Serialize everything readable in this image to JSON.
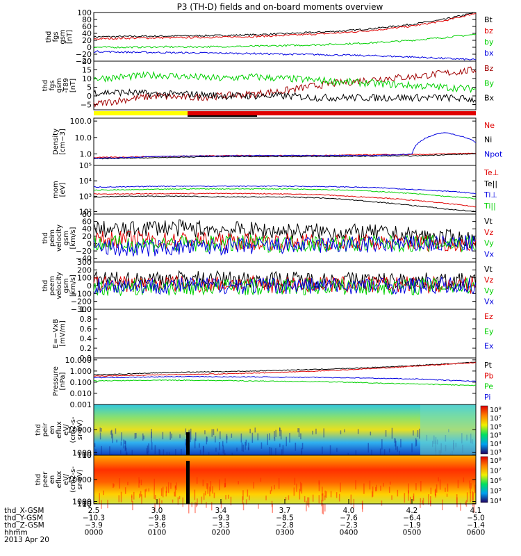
{
  "title": "P3 (TH-D) fields and on-board moments overview",
  "colors": {
    "black": "#000000",
    "red": "#e00000",
    "green": "#00d000",
    "blue": "#0000e0",
    "darkred": "#a00000",
    "yellow": "#ffff00"
  },
  "chart_data": [
    {
      "type": "line",
      "ylabel": [
        "thd",
        "fgs",
        "gsm",
        "[nT]"
      ],
      "ylim": [
        -40,
        100
      ],
      "yticks": [
        "100",
        "80",
        "60",
        "40",
        "20",
        "0",
        "−20",
        "−40"
      ],
      "ytick_values": [
        100,
        80,
        60,
        40,
        20,
        0,
        -20,
        -40
      ],
      "x": [
        0,
        30,
        60,
        90,
        120,
        150,
        180,
        210,
        240,
        270,
        300,
        330,
        360
      ],
      "series": [
        {
          "name": "Bt",
          "color": "black",
          "values": [
            30,
            31,
            32,
            33,
            34,
            36,
            39,
            43,
            48,
            56,
            66,
            80,
            100
          ]
        },
        {
          "name": "bz",
          "color": "red",
          "values": [
            24,
            26,
            27,
            28,
            29,
            31,
            34,
            38,
            43,
            51,
            61,
            76,
            98
          ]
        },
        {
          "name": "by",
          "color": "green",
          "values": [
            0,
            0,
            1,
            1,
            2,
            3,
            5,
            7,
            10,
            14,
            20,
            28,
            37
          ]
        },
        {
          "name": "bx",
          "color": "blue",
          "values": [
            -12,
            -14,
            -15,
            -16,
            -17,
            -18,
            -20,
            -21,
            -23,
            -25,
            -28,
            -32,
            -36
          ]
        }
      ]
    },
    {
      "type": "line",
      "ylabel": [
        "thd",
        "fgs",
        "gsm",
        "-T89",
        "[nT]"
      ],
      "ylim": [
        -8,
        20
      ],
      "yticks": [
        "20",
        "15",
        "10",
        "5",
        "0",
        "−5"
      ],
      "ytick_values": [
        20,
        15,
        10,
        5,
        0,
        -5
      ],
      "x": [
        0,
        30,
        60,
        90,
        120,
        150,
        180,
        210,
        240,
        270,
        300,
        330,
        360
      ],
      "series": [
        {
          "name": "Bz",
          "color": "darkred",
          "values": [
            -5,
            -2,
            0,
            -1,
            0,
            1,
            3,
            6,
            8,
            10,
            11,
            13,
            15
          ]
        },
        {
          "name": "By",
          "color": "green",
          "values": [
            10,
            11,
            12,
            11,
            10,
            11,
            10,
            9,
            8,
            7,
            6,
            5,
            4
          ]
        },
        {
          "name": "Bx",
          "color": "black",
          "values": [
            2,
            2,
            1,
            1,
            0,
            0,
            0,
            -1,
            -1,
            -1,
            -1,
            -1,
            -2
          ]
        }
      ]
    },
    {
      "type": "line",
      "log": true,
      "ylabel": [
        "Density",
        "[cm−3]"
      ],
      "ylim": [
        0.2,
        150
      ],
      "yticks": [
        "100.0",
        "10.0",
        "1.0"
      ],
      "ytick_values": [
        100,
        10,
        1
      ],
      "x": [
        0,
        30,
        60,
        90,
        120,
        150,
        180,
        210,
        240,
        270,
        300,
        330,
        360
      ],
      "series": [
        {
          "name": "Ne",
          "color": "red",
          "values": [
            0.6,
            0.65,
            0.7,
            0.75,
            0.8,
            0.8,
            0.8,
            0.8,
            0.85,
            0.9,
            0.9,
            1.0,
            1.1
          ]
        },
        {
          "name": "Ni",
          "color": "black",
          "values": [
            0.5,
            0.55,
            0.6,
            0.65,
            0.7,
            0.7,
            0.7,
            0.7,
            0.7,
            0.75,
            0.75,
            0.9,
            1.0
          ]
        },
        {
          "name": "Npot",
          "color": "blue",
          "values": [
            0.55,
            0.6,
            0.7,
            0.75,
            0.75,
            0.8,
            0.8,
            0.8,
            0.8,
            0.8,
            1.0,
            20,
            5
          ]
        }
      ]
    },
    {
      "type": "line",
      "log": true,
      "ylabel": [
        "mom",
        "[eV]"
      ],
      "ylim": [
        70,
        100000
      ],
      "yticks": [
        "10⁵",
        "10⁴",
        "10³",
        "10²"
      ],
      "ytick_values": [
        100000,
        10000,
        1000,
        100
      ],
      "x": [
        0,
        30,
        60,
        90,
        120,
        150,
        180,
        210,
        240,
        270,
        300,
        330,
        360
      ],
      "series": [
        {
          "name": "Te⊥",
          "color": "red",
          "values": [
            1400,
            1400,
            1500,
            1500,
            1500,
            1500,
            1400,
            1300,
            1000,
            800,
            550,
            350,
            200
          ]
        },
        {
          "name": "Te||",
          "color": "black",
          "values": [
            900,
            1000,
            1000,
            1000,
            900,
            900,
            900,
            800,
            600,
            400,
            250,
            150,
            100
          ]
        },
        {
          "name": "Ti⊥",
          "color": "blue",
          "values": [
            4000,
            4000,
            4500,
            4500,
            4500,
            4500,
            4500,
            4300,
            4000,
            3500,
            2800,
            2200,
            1500
          ]
        },
        {
          "name": "Ti||",
          "color": "green",
          "values": [
            2500,
            2600,
            2800,
            3000,
            3000,
            3000,
            3000,
            2800,
            2500,
            2000,
            1500,
            1000,
            700
          ]
        }
      ]
    },
    {
      "type": "line",
      "ylabel": [
        "thd",
        "peim",
        "velocity",
        "gsm",
        "[km/s]"
      ],
      "ylim": [
        -50,
        80
      ],
      "yticks": [
        "80",
        "60",
        "40",
        "20",
        "0",
        "−20",
        "−40"
      ],
      "ytick_values": [
        80,
        60,
        40,
        20,
        0,
        -20,
        -40
      ],
      "x": [
        0,
        30,
        60,
        90,
        120,
        150,
        180,
        210,
        240,
        270,
        300,
        330,
        360
      ],
      "series": [
        {
          "name": "Vt",
          "color": "black",
          "values": [
            40,
            35,
            45,
            40,
            38,
            36,
            34,
            32,
            30,
            28,
            22,
            15,
            10
          ]
        },
        {
          "name": "Vz",
          "color": "red",
          "values": [
            10,
            12,
            8,
            10,
            6,
            5,
            5,
            4,
            3,
            2,
            2,
            1,
            0
          ]
        },
        {
          "name": "Vy",
          "color": "green",
          "values": [
            0,
            -2,
            0,
            -2,
            -1,
            0,
            -1,
            0,
            -1,
            0,
            0,
            0,
            0
          ]
        },
        {
          "name": "Vx",
          "color": "blue",
          "values": [
            -10,
            -15,
            -12,
            -10,
            -8,
            -8,
            -6,
            -5,
            -4,
            -3,
            -2,
            -1,
            0
          ]
        }
      ]
    },
    {
      "type": "line",
      "ylabel": [
        "thd",
        "peem",
        "velocity",
        "gsm",
        "[km/s]"
      ],
      "ylim": [
        -300,
        300
      ],
      "yticks": [
        "300",
        "200",
        "100",
        "0",
        "−100",
        "−200",
        "−300"
      ],
      "ytick_values": [
        300,
        200,
        100,
        0,
        -100,
        -200,
        -300
      ],
      "x": [
        0,
        30,
        60,
        90,
        120,
        150,
        180,
        210,
        240,
        270,
        300,
        330,
        360
      ],
      "series": [
        {
          "name": "Vt",
          "color": "black",
          "values": [
            80,
            70,
            90,
            85,
            80,
            80,
            75,
            70,
            70,
            65,
            60,
            55,
            50
          ]
        },
        {
          "name": "Vz",
          "color": "red",
          "values": [
            20,
            20,
            25,
            20,
            20,
            15,
            15,
            15,
            10,
            10,
            10,
            5,
            5
          ]
        },
        {
          "name": "Vy",
          "color": "green",
          "values": [
            -20,
            -25,
            -20,
            -20,
            -15,
            -15,
            -15,
            -10,
            -10,
            -10,
            -10,
            -5,
            -5
          ]
        },
        {
          "name": "Vx",
          "color": "blue",
          "values": [
            0,
            5,
            0,
            0,
            5,
            0,
            0,
            0,
            0,
            0,
            0,
            0,
            0
          ]
        }
      ]
    },
    {
      "type": "line",
      "ylabel": [
        "E=−VxB",
        "[mV/m]"
      ],
      "ylim": [
        0,
        1
      ],
      "yticks": [
        "1.0",
        "0.8",
        "0.6",
        "0.4",
        "0.2",
        "0.0"
      ],
      "ytick_values": [
        1,
        0.8,
        0.6,
        0.4,
        0.2,
        0
      ],
      "x": [],
      "series": [
        {
          "name": "Ez",
          "color": "red",
          "values": []
        },
        {
          "name": "Ey",
          "color": "green",
          "values": []
        },
        {
          "name": "Ex",
          "color": "blue",
          "values": []
        }
      ]
    },
    {
      "type": "line",
      "log": true,
      "ylabel": [
        "Pressure",
        "[nPa]"
      ],
      "ylim": [
        0.001,
        15
      ],
      "yticks": [
        "10.000",
        "1.000",
        "0.100",
        "0.010",
        "0.001"
      ],
      "ytick_values": [
        10,
        1,
        0.1,
        0.01,
        0.001
      ],
      "x": [
        0,
        30,
        60,
        90,
        120,
        150,
        180,
        210,
        240,
        270,
        300,
        330,
        360
      ],
      "series": [
        {
          "name": "Pt",
          "color": "black",
          "values": [
            0.45,
            0.55,
            0.7,
            0.8,
            0.9,
            1.0,
            1.2,
            1.4,
            1.7,
            2.2,
            3.0,
            4.2,
            6.0
          ]
        },
        {
          "name": "Pb",
          "color": "red",
          "values": [
            0.35,
            0.4,
            0.45,
            0.5,
            0.55,
            0.65,
            0.8,
            1.0,
            1.3,
            1.8,
            2.6,
            3.9,
            5.8
          ]
        },
        {
          "name": "Pe",
          "color": "green",
          "values": [
            0.13,
            0.14,
            0.15,
            0.15,
            0.14,
            0.13,
            0.12,
            0.11,
            0.1,
            0.08,
            0.07,
            0.06,
            0.05
          ]
        },
        {
          "name": "Pi",
          "color": "blue",
          "values": [
            0.25,
            0.27,
            0.3,
            0.32,
            0.3,
            0.3,
            0.28,
            0.27,
            0.25,
            0.22,
            0.2,
            0.15,
            0.12
          ]
        }
      ]
    },
    {
      "type": "heatmap",
      "ylabel": [
        "thd",
        "peir",
        "en",
        "eflux",
        "eV/",
        "(cm2-s-",
        "sr-eV)"
      ],
      "ylim": [
        7,
        20000
      ],
      "yticks": [
        "10000",
        "1000",
        "100",
        "10"
      ],
      "ytick_values": [
        10000,
        1000,
        100,
        10
      ],
      "colorbar_ticks": [
        "10⁸",
        "10⁷",
        "10⁶",
        "10⁵",
        "10⁴",
        "10³"
      ]
    },
    {
      "type": "heatmap",
      "ylabel": [
        "thd",
        "peer",
        "en",
        "eflux",
        "eV/",
        "(cm2-s-",
        "sr-eV)"
      ],
      "ylim": [
        7,
        20000
      ],
      "yticks": [
        "10000",
        "1000",
        "100",
        "10"
      ],
      "ytick_values": [
        10000,
        1000,
        100,
        10
      ],
      "colorbar_ticks": [
        "10⁸",
        "10⁷",
        "10⁶",
        "10⁵",
        "10⁴"
      ]
    }
  ],
  "xaxis": {
    "rows": [
      {
        "label": "thd_X-GSM",
        "values": [
          "2.5",
          "3.0",
          "3.4",
          "3.7",
          "4.0",
          "4.2",
          "4.1"
        ]
      },
      {
        "label": "thd_Y-GSM",
        "values": [
          "−10.3",
          "−9.8",
          "−9.3",
          "−8.5",
          "−7.6",
          "−6.4",
          "−5.0"
        ]
      },
      {
        "label": "thd_Z-GSM",
        "values": [
          "−3.9",
          "−3.6",
          "−3.3",
          "−2.8",
          "−2.3",
          "−1.9",
          "−1.4"
        ]
      },
      {
        "label": "hhmm",
        "values": [
          "0000",
          "0100",
          "0200",
          "0300",
          "0400",
          "0500",
          "0600"
        ]
      }
    ],
    "date": "2013 Apr 20"
  }
}
